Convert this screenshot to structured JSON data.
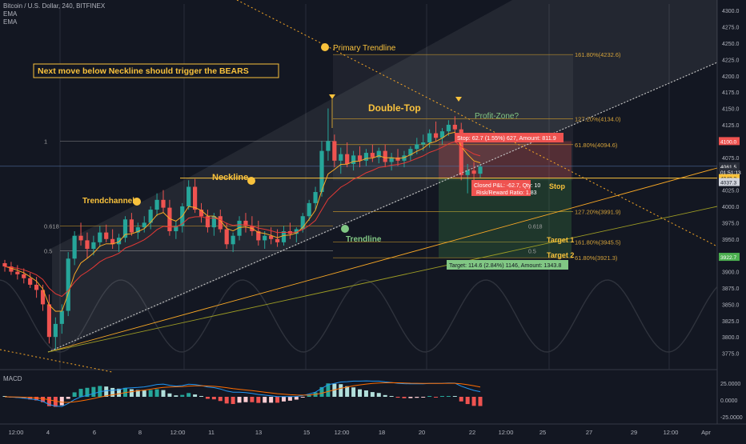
{
  "header": {
    "symbol_line": "Bitcoin / U.S. Dollar, 240, BITFINEX",
    "indicator_1": "EMA",
    "indicator_2": "EMA"
  },
  "callout": "Next move below Neckline should trigger the BEARS",
  "annotations": {
    "primary_trendline": "Primary Trendline",
    "double_top": "Double-Top",
    "profit_zone": "Profit-Zone?",
    "neckline": "Neckline",
    "trendchannel": "Trendchannel",
    "trendline": "Trendline",
    "target1": "Target 1",
    "target2": "Target 2",
    "stop": "Stop",
    "stop_box": "Stop: 62.7 (1.55%) 627, Amount: 811.9",
    "target_box": "Target: 114.6 (2.84%) 1146, Amount: 1343.8",
    "closed_pnl": "Closed P&L: -62.7, Qty: 10",
    "risk_reward": "Risk/Reward Ratio: 1.83"
  },
  "fib_labels": [
    {
      "text": "161.80%(4232.6)",
      "price": 4232.6
    },
    {
      "text": "127.20%(4134.0)",
      "price": 4134.0
    },
    {
      "text": "61.80%(4094.6)",
      "price": 4094.6
    },
    {
      "text": "127.20%(3991.9)",
      "price": 3991.9
    },
    {
      "text": "161.80%(3945.5)",
      "price": 3945.5
    },
    {
      "text": "61.80%(3921.3)",
      "price": 3921.3
    }
  ],
  "fib_left_labels": [
    {
      "text": "1",
      "price": 4100
    },
    {
      "text": "0.618",
      "price": 3970
    },
    {
      "text": "0.5",
      "price": 3932
    }
  ],
  "fib_right_labels": [
    {
      "text": "0.618",
      "price": 3970
    },
    {
      "text": "0.5",
      "price": 3932
    }
  ],
  "price_axis": {
    "ticks": [
      "4300.0",
      "4275.0",
      "4250.0",
      "4225.0",
      "4200.0",
      "4175.0",
      "4150.0",
      "4125.0",
      "4100.0",
      "4075.0",
      "4050.0",
      "4025.0",
      "4000.0",
      "3975.0",
      "3950.0",
      "3925.0",
      "3900.0",
      "3875.0",
      "3850.0",
      "3825.0",
      "3800.0",
      "3775.0"
    ],
    "badges": [
      {
        "text": "4100.0",
        "price": 4100.0,
        "color": "#ef5350"
      },
      {
        "text": "4061.5",
        "price": 4061.5,
        "color": "#2a2e39"
      },
      {
        "text": "01:51:13",
        "price": 4052.5,
        "color": "#2a2e39"
      },
      {
        "text": "4043.3",
        "price": 4043.3,
        "color": "#f9c23c"
      },
      {
        "text": "4037.3",
        "price": 4037.3,
        "color": "#d1d4dc"
      },
      {
        "text": "3922.7",
        "price": 3922.7,
        "color": "#4caf50"
      }
    ]
  },
  "macd_axis": {
    "label": "MACD",
    "ticks": [
      "25.0000",
      "0.0000",
      "-25.0000"
    ]
  },
  "time_axis": {
    "ticks": [
      "12:00",
      "4",
      "6",
      "8",
      "12:00",
      "11",
      "13",
      "15",
      "12:00",
      "18",
      "20",
      "22",
      "12:00",
      "25",
      "27",
      "29",
      "12:00",
      "Apr"
    ]
  },
  "chart_data": {
    "type": "candlestick",
    "title": "Bitcoin / U.S. Dollar, 240, BITFINEX",
    "ylim": [
      3750,
      4310
    ],
    "colors": {
      "up": "#26a69a",
      "down": "#ef5350",
      "ema_fast": "#f9a825",
      "ema_slow": "#e53935",
      "macd": "#2196f3",
      "signal": "#ff6d00"
    },
    "candles": [
      [
        3913,
        3918,
        3900,
        3908
      ],
      [
        3908,
        3915,
        3895,
        3900
      ],
      [
        3900,
        3910,
        3888,
        3896
      ],
      [
        3896,
        3905,
        3882,
        3890
      ],
      [
        3890,
        3898,
        3875,
        3880
      ],
      [
        3880,
        3892,
        3860,
        3872
      ],
      [
        3872,
        3880,
        3840,
        3850
      ],
      [
        3850,
        3865,
        3790,
        3800
      ],
      [
        3800,
        3830,
        3780,
        3820
      ],
      [
        3820,
        3850,
        3805,
        3840
      ],
      [
        3840,
        3930,
        3832,
        3920
      ],
      [
        3920,
        3962,
        3910,
        3955
      ],
      [
        3955,
        3975,
        3940,
        3948
      ],
      [
        3948,
        3960,
        3920,
        3935
      ],
      [
        3935,
        3955,
        3925,
        3945
      ],
      [
        3945,
        3970,
        3938,
        3960
      ],
      [
        3960,
        3972,
        3945,
        3950
      ],
      [
        3950,
        3965,
        3935,
        3942
      ],
      [
        3942,
        3958,
        3930,
        3952
      ],
      [
        3952,
        3985,
        3945,
        3980
      ],
      [
        3980,
        3990,
        3955,
        3960
      ],
      [
        3960,
        3975,
        3950,
        3968
      ],
      [
        3968,
        3985,
        3960,
        3975
      ],
      [
        3975,
        4000,
        3965,
        3995
      ],
      [
        3995,
        4020,
        3985,
        4010
      ],
      [
        4010,
        4025,
        3990,
        3998
      ],
      [
        3998,
        4010,
        3955,
        3962
      ],
      [
        3962,
        3978,
        3950,
        3970
      ],
      [
        3970,
        4005,
        3960,
        4000
      ],
      [
        4000,
        4040,
        3995,
        4030
      ],
      [
        4030,
        4042,
        3990,
        3995
      ],
      [
        3995,
        4005,
        3975,
        3985
      ],
      [
        3985,
        3995,
        3960,
        3968
      ],
      [
        3968,
        3990,
        3955,
        3985
      ],
      [
        3985,
        3995,
        3960,
        3965
      ],
      [
        3965,
        3975,
        3935,
        3942
      ],
      [
        3942,
        3960,
        3930,
        3955
      ],
      [
        3955,
        3985,
        3948,
        3978
      ],
      [
        3978,
        3990,
        3960,
        3970
      ],
      [
        3970,
        3985,
        3955,
        3962
      ],
      [
        3962,
        3978,
        3940,
        3948
      ],
      [
        3948,
        3962,
        3935,
        3955
      ],
      [
        3955,
        3968,
        3942,
        3950
      ],
      [
        3950,
        3965,
        3938,
        3945
      ],
      [
        3945,
        3970,
        3940,
        3962
      ],
      [
        3962,
        3975,
        3950,
        3958
      ],
      [
        3958,
        3968,
        3945,
        3965
      ],
      [
        3965,
        3990,
        3960,
        3985
      ],
      [
        3985,
        4010,
        3978,
        4005
      ],
      [
        4005,
        4030,
        3995,
        4022
      ],
      [
        4022,
        4100,
        4015,
        4085
      ],
      [
        4085,
        4150,
        4070,
        4100
      ],
      [
        4100,
        4110,
        4060,
        4070
      ],
      [
        4070,
        4090,
        4050,
        4080
      ],
      [
        4080,
        4098,
        4060,
        4065
      ],
      [
        4065,
        4085,
        4055,
        4078
      ],
      [
        4078,
        4092,
        4060,
        4070
      ],
      [
        4070,
        4088,
        4062,
        4082
      ],
      [
        4082,
        4095,
        4068,
        4075
      ],
      [
        4075,
        4090,
        4066,
        4085
      ],
      [
        4085,
        4095,
        4060,
        4068
      ],
      [
        4068,
        4082,
        4055,
        4075
      ],
      [
        4075,
        4088,
        4062,
        4070
      ],
      [
        4070,
        4085,
        4060,
        4078
      ],
      [
        4078,
        4092,
        4070,
        4088
      ],
      [
        4088,
        4105,
        4080,
        4095
      ],
      [
        4095,
        4110,
        4085,
        4098
      ],
      [
        4098,
        4118,
        4090,
        4112
      ],
      [
        4112,
        4130,
        4100,
        4105
      ],
      [
        4105,
        4120,
        4095,
        4115
      ],
      [
        4115,
        4132,
        4108,
        4125
      ],
      [
        4125,
        4138,
        4110,
        4118
      ],
      [
        4118,
        4128,
        4040,
        4048
      ],
      [
        4048,
        4065,
        4020,
        4055
      ],
      [
        4055,
        4068,
        4040,
        4050
      ],
      [
        4050,
        4065,
        4044,
        4061
      ]
    ]
  }
}
